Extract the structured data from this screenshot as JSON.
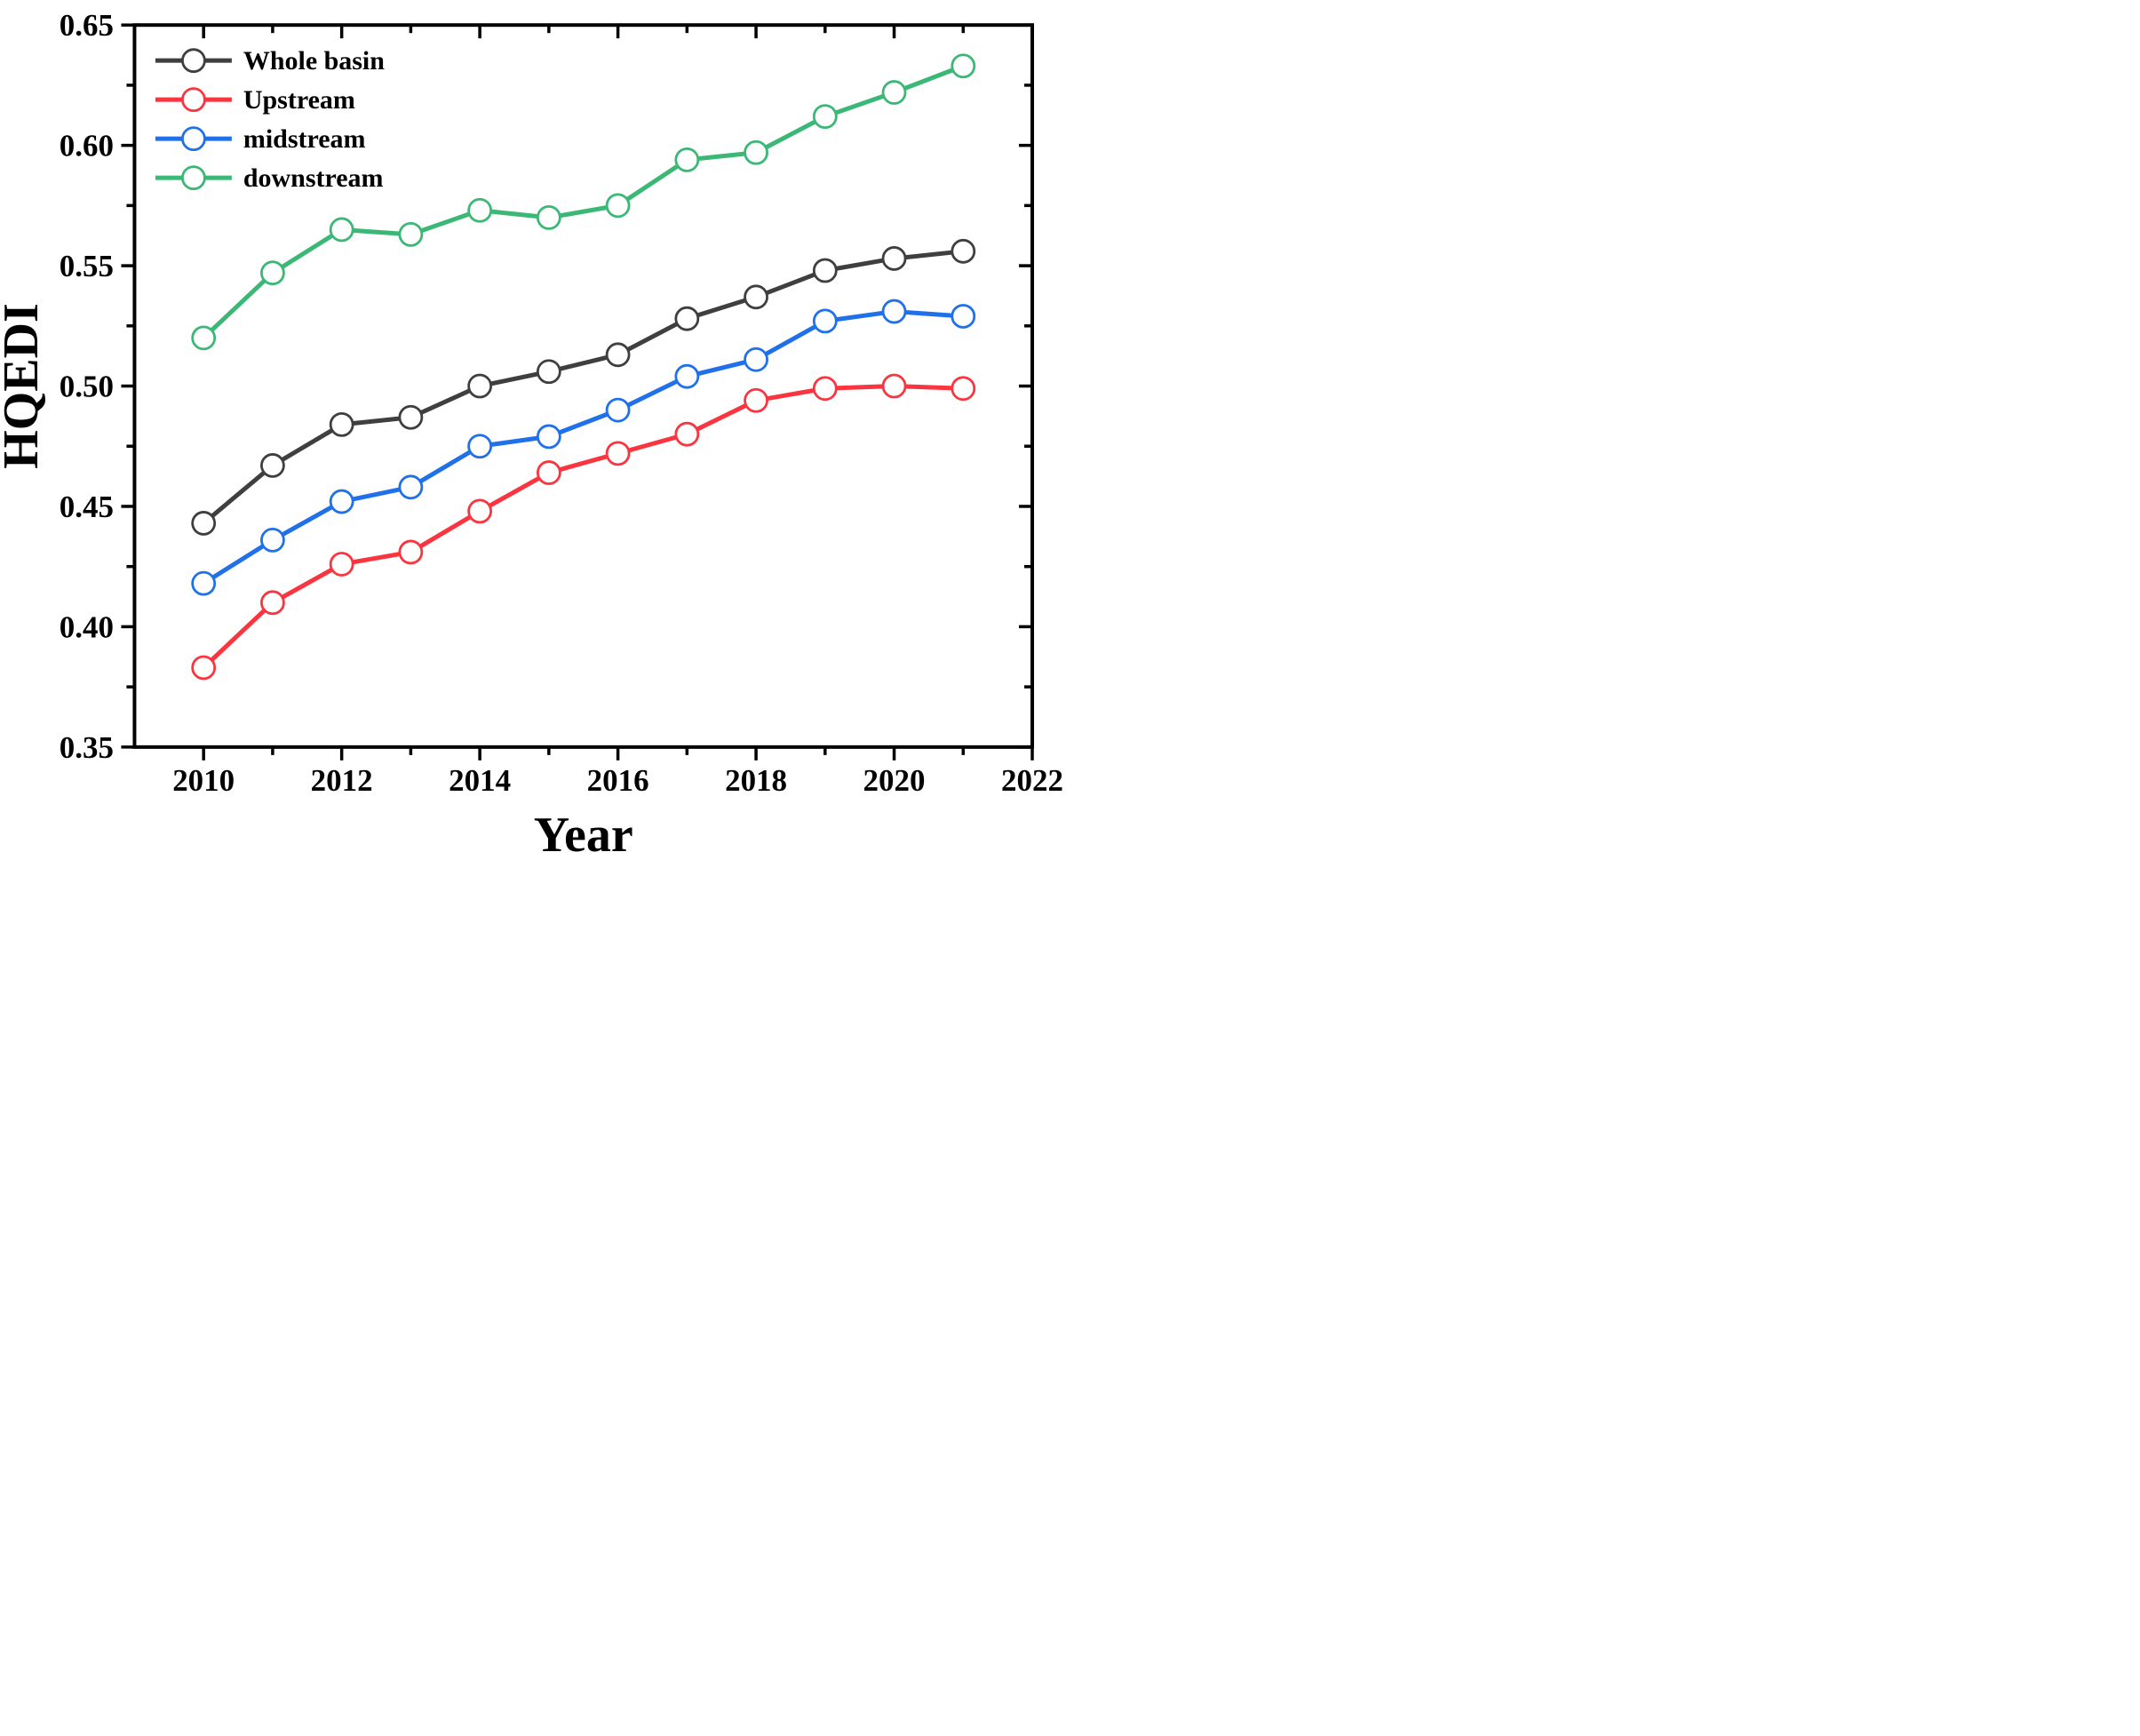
{
  "chart_data": {
    "type": "line",
    "title": "",
    "xlabel": "Year",
    "ylabel": "HQEDI",
    "x": [
      2010,
      2011,
      2012,
      2013,
      2014,
      2015,
      2016,
      2017,
      2018,
      2019,
      2020,
      2021
    ],
    "series": [
      {
        "name": "Whole basin",
        "color": "#3f3f3f",
        "values": [
          0.443,
          0.467,
          0.484,
          0.487,
          0.5,
          0.506,
          0.513,
          0.528,
          0.537,
          0.548,
          0.553,
          0.556
        ]
      },
      {
        "name": "Upstream",
        "color": "#fa3540",
        "values": [
          0.383,
          0.41,
          0.426,
          0.431,
          0.448,
          0.464,
          0.472,
          0.48,
          0.494,
          0.499,
          0.5,
          0.499
        ]
      },
      {
        "name": "midstream",
        "color": "#2070ea",
        "values": [
          0.418,
          0.436,
          0.452,
          0.458,
          0.475,
          0.479,
          0.49,
          0.504,
          0.511,
          0.527,
          0.531,
          0.529
        ]
      },
      {
        "name": "downstream",
        "color": "#3cb876",
        "values": [
          0.52,
          0.547,
          0.565,
          0.563,
          0.573,
          0.57,
          0.575,
          0.594,
          0.597,
          0.612,
          0.622,
          0.633
        ]
      }
    ],
    "xlim": [
      2009,
      2022
    ],
    "ylim": [
      0.35,
      0.65
    ],
    "x_major_ticks": [
      2010,
      2012,
      2014,
      2016,
      2018,
      2020,
      2022
    ],
    "x_minor_ticks": [
      2011,
      2013,
      2015,
      2017,
      2019,
      2021
    ],
    "y_major_ticks": [
      0.35,
      0.4,
      0.45,
      0.5,
      0.55,
      0.6,
      0.65
    ],
    "y_minor_ticks": [
      0.375,
      0.425,
      0.475,
      0.525,
      0.575,
      0.625
    ],
    "x_tick_labels": [
      "2010",
      "2012",
      "2014",
      "2016",
      "2018",
      "2020",
      "2022"
    ],
    "y_tick_labels": [
      "0.35",
      "0.40",
      "0.45",
      "0.50",
      "0.55",
      "0.60",
      "0.65"
    ],
    "grid": false,
    "legend_position": "top-left",
    "legend": [
      "Whole basin",
      "Upstream",
      "midstream",
      "downstream"
    ],
    "marker": "open-circle",
    "axis_color": "#000000",
    "background": "#ffffff"
  }
}
